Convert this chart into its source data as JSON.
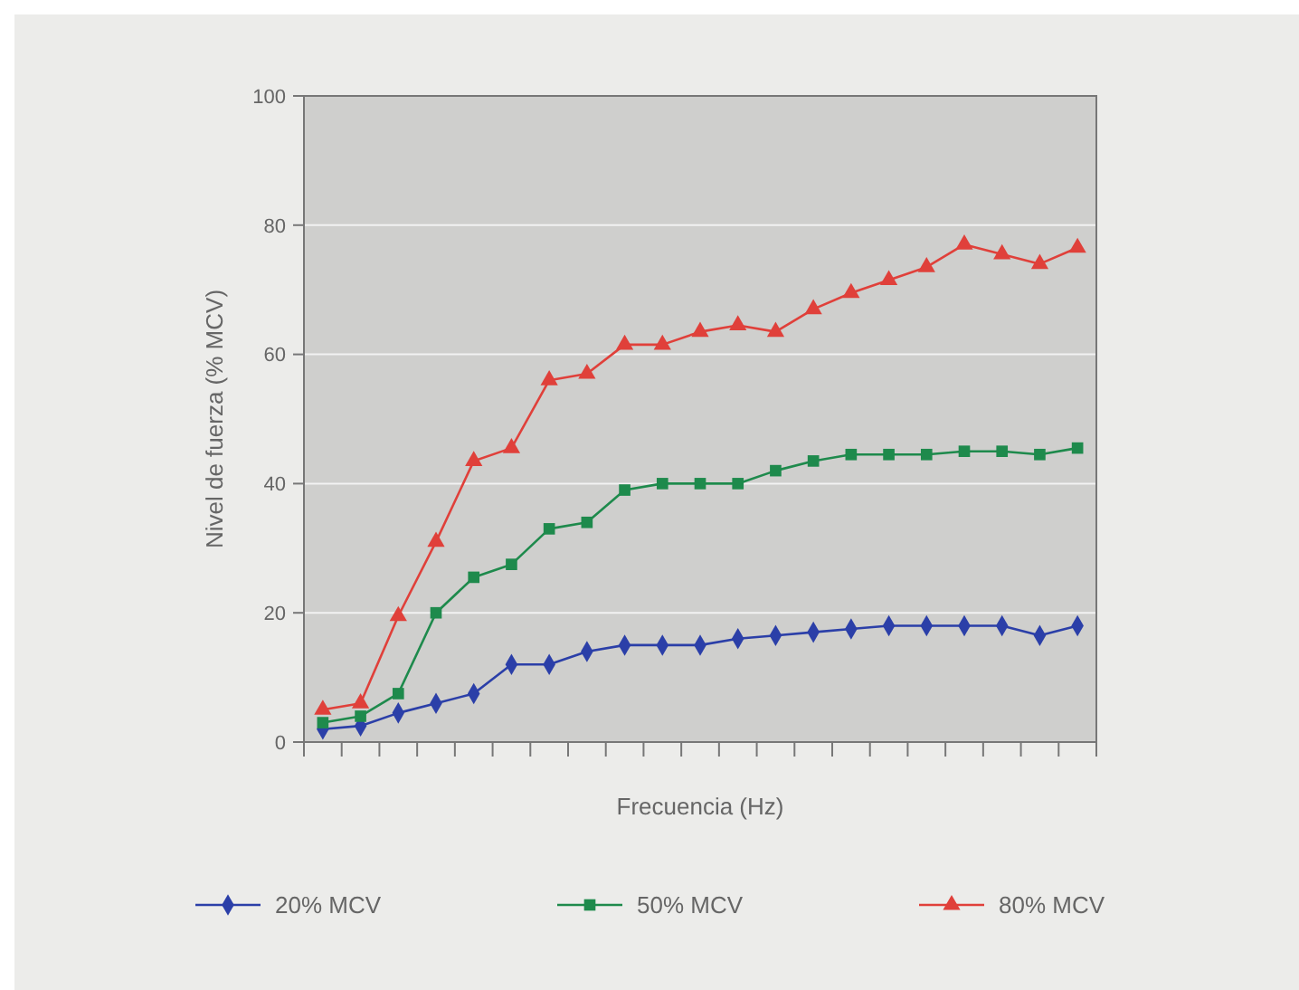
{
  "chart_data": {
    "type": "line",
    "xlabel": "Frecuencia (Hz)",
    "ylabel": "Nivel de fuerza (% MCV)",
    "categories": [
      null,
      null,
      null,
      null,
      null,
      null,
      null,
      null,
      null,
      null,
      null,
      null,
      null,
      null,
      null,
      null,
      null,
      null,
      null,
      null,
      null
    ],
    "ylim": [
      0,
      100
    ],
    "yticks": [
      0,
      20,
      40,
      60,
      80,
      100
    ],
    "grid": "y",
    "legend": "bottom",
    "series": [
      {
        "name": "20% MCV",
        "color": "#2b3fa8",
        "marker": "diamond",
        "values": [
          2,
          2.5,
          4.5,
          6,
          7.5,
          12,
          12,
          14,
          15,
          15,
          15,
          16,
          16.5,
          17,
          17.5,
          18,
          18,
          18,
          18,
          16.5,
          18
        ]
      },
      {
        "name": "50% MCV",
        "color": "#1e8a4c",
        "marker": "square",
        "values": [
          3,
          4,
          7.5,
          20,
          25.5,
          27.5,
          33,
          34,
          39,
          40,
          40,
          40,
          42,
          43.5,
          44.5,
          44.5,
          44.5,
          45,
          45,
          44.5,
          45.5
        ]
      },
      {
        "name": "80% MCV",
        "color": "#e0403a",
        "marker": "triangle",
        "values": [
          5,
          6,
          19.5,
          31,
          43.5,
          45.5,
          56,
          57,
          61.5,
          61.5,
          63.5,
          64.5,
          63.5,
          67,
          69.5,
          71.5,
          73.5,
          77,
          75.5,
          74,
          76.5
        ]
      }
    ]
  }
}
